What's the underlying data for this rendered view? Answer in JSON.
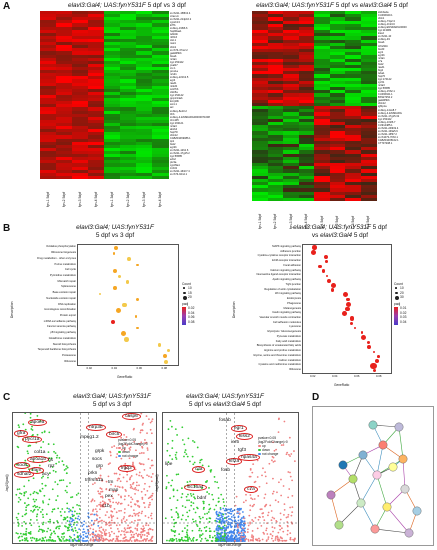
{
  "panels": {
    "A": {
      "letter": "A",
      "left": {
        "title_it": "elavl3:Gal4; UAS:fynY531F",
        "title_n": " 5 dpf  vs  3 dpf",
        "samples": [
          "fyn-1 5dpf",
          "fyn-2 5dpf",
          "fyn-3 5dpf",
          "fyn-4 5dpf",
          "fyn-1 3dpf",
          "fyn-2 3dpf",
          "fyn-3 3dpf",
          "fyn-4 3dpf"
        ],
        "genes": [
          "si:ch211-158l13.4",
          "crtam-b",
          "si:ch211-214p16.2",
          "cyp2n13",
          "kif7b",
          "si:dkey-196l6.6",
          "hsp90aa1",
          "tubb4b",
          "nfil3-6",
          "ctsl.1",
          "mat1",
          "cbln1",
          "si:ch73-47m2.2",
          "gadd45bb",
          "fosab",
          "nr4a1",
          "zgc:153442",
          "pvalb7",
          "crx.1",
          "prox1a",
          "nr1d1",
          "si:dkey-221h2.5",
          "egr4",
          "rasd1",
          "ntrk2b",
          "wnt7bb",
          "cldn5a",
          "zgc:154142",
          "ppp1r14ab",
          "kcnj10b",
          "sst1.1",
          "arc",
          "si:dkey-8e10.2",
          "thrb",
          "si:dkey-4.ENSDARG00000071008",
          "trim105",
          "zgc:163121",
          "nr4a3",
          "abcb4",
          "hsp70l",
          "cbln12",
          "CABZ01069086.1",
          "tpi1",
          "fosl2",
          "egr2b",
          "si:ch211-12h2.6",
          "si:ch211-17g15.2",
          "zgc:56585",
          "edn2",
          "ptx3a",
          "cyp39a1",
          "znhit3",
          "si:ch211-161h7.4",
          "si:ch73-94n4.1"
        ]
      },
      "right": {
        "title_it": "elavl3:Gal4; UAS:fynY531F",
        "title_n": " 5 dpf  vs  ",
        "title_it2": "elavl3:Gal4",
        "title_n2": " 5 dpf",
        "samples": [
          "fyn-1 5dpf",
          "fyn-2 5dpf",
          "fyn-3 5dpf",
          "fyn-4 5dpf",
          "C-1 5dpf",
          "C-2 5dpf",
          "C-3 5dpf",
          "C-4 5dpf"
        ],
        "genes": [
          "slc16a4a",
          "CU466940.1",
          "cbln1",
          "si:dkey-73p2.3",
          "si:dkey-1h24.6",
          "si:dkey.ENSDARG00000",
          "zgc:113084",
          "kiss2",
          "si:ch211-10",
          "si:dkey-49",
          "fosab",
          "tnfrsf11b",
          "foxd3",
          "egr1",
          "egr2b",
          "nr4a1",
          "c7a",
          "fosl2",
          "rasd1",
          "btg2",
          "tuba1",
          "hsp70",
          "zgc:174142",
          "cyr61",
          "nr4a3",
          "zgc:56585",
          "si:dkey-15h2.1",
          "CU466941.1",
          "BX927254.2",
          "gadd45bb",
          "cbln12",
          "igfbp1a",
          "si:dkey-14o18.7",
          "si:dkey-4.ENSDARG",
          "si:ch211-17g15.32",
          "zgc:153442",
          "si:dkey-102l6.7",
          "CU914485.1",
          "si:ch211-249l19.4",
          "si:ch211-139a5.9",
          "si:ch211-165l7.2",
          "si:ch1073-70h3.1",
          "CABZ01005102.1",
          "CT737208.1"
        ]
      }
    },
    "B": {
      "letter": "B",
      "left": {
        "title_it": "elavl3:Gal4; UAS:fynY531F",
        "title_n": "5 dpf  vs  3 dpf",
        "ylabel": "Description",
        "xlabel": "GeneRatio",
        "legend_count_title": "Count",
        "legend_count": [
          "10",
          "15",
          "20"
        ],
        "legend_padj_title": "padj",
        "legend_padj": [
          "0.02",
          "0.04",
          "0.06",
          "0.08"
        ],
        "terms": [
          "Oxidative phosphorylation",
          "Ribosome biogenesis",
          "Drug metabolism - other enzymes",
          "Purine metabolism",
          "Cell cycle",
          "Pyrimidine metabolism",
          "Mismatch repair",
          "Spliceosome",
          "Base excision repair",
          "Nucleotide excision repair",
          "DNA replication",
          "Homologous recombination",
          "Protein export",
          "mRNA surveillance pathway",
          "Fanconi anemia pathway",
          "p53 signaling pathway",
          "Glutathione metabolism",
          "Steroid biosynthesis",
          "Terpenoid backbone biosynthesis",
          "Proteasome",
          "Ribosome"
        ],
        "xticks": [
          "0.02",
          "0.04",
          "0.06",
          "0.08"
        ]
      },
      "right": {
        "title_it": "elavl3:Gal4; UAS:fynY531F",
        "title_n": " 5 dpf",
        "title_n2": "vs  ",
        "title_it2": "elavl3:Gal4",
        "title_n3": " 5 dpf",
        "ylabel": "Description",
        "xlabel": "GeneRatio",
        "legend_count_title": "Count",
        "legend_count": [
          "10",
          "20",
          "30"
        ],
        "legend_padj_title": "padj",
        "legend_padj": [
          "0.01",
          "0.02",
          "0.03",
          "0.04"
        ],
        "terms": [
          "MAPK signaling pathway",
          "Adherens junction",
          "Cytokine-cytokine receptor interaction",
          "ECM-receptor interaction",
          "Focal adhesion",
          "Calcium signaling pathway",
          "Neuroactive ligand-receptor interaction",
          "Apelin signaling pathway",
          "Tight junction",
          "Regulation of actin cytoskeleton",
          "Wnt signaling pathway",
          "Endocytosis",
          "Phagosome",
          "Melanogenesis",
          "Insulin signaling pathway",
          "Vascular smooth muscle contraction",
          "Cell adhesion molecules",
          "Lysosome",
          "Glycolysis / Gluconeogenesis",
          "Pyruvate metabolism",
          "Fatty acid metabolism",
          "Biosynthesis of unsaturated fatty acids",
          "Arginine and proline metabolism",
          "Glycine, serine and threonine metabolism",
          "Carbon metabolism",
          "Cysteine and methionine metabolism",
          "Ribosome"
        ],
        "xticks": [
          "0.02",
          "0.04",
          "0.06",
          "0.08"
        ]
      }
    },
    "C": {
      "letter": "C",
      "left": {
        "title_it": "elavl3:Gal4; UAS:fynY531F",
        "title_n": "5 dpf  vs  3 dpf",
        "ylabel": "-log10(padj)",
        "xlabel": "log2FoldChange",
        "legend_lines": [
          "pvalue<0.05",
          "|log2FoldChange|>0",
          "up",
          "down",
          "not change"
        ],
        "genes_up": [
          "casp6",
          "ntrp3b",
          "birc5",
          "mpeg1.2",
          "grpk",
          "socs",
          "grp",
          "prkn",
          "tnfrsf11a",
          "tm",
          "map",
          "pex"
        ],
        "genes_down": [
          "apoea",
          "gfra",
          "pycr1a",
          "col1a",
          "apoa1b",
          "sod1",
          "sdhaf2",
          "tfam",
          "acy"
        ],
        "genes_extra": [
          "irgq3",
          "hs",
          "rpz",
          "c1b"
        ]
      },
      "right": {
        "title_it": "elavl3:Gal4; UAS:fynY531F",
        "title_n": "5 dpf  vs  ",
        "title_it2": "elavl3:Gal4",
        "title_n2": " 5 dpf",
        "ylabel": "-log10(padj)",
        "xlabel": "log2FoldChange",
        "legend_lines": [
          "pvalue<0.05",
          "|log2FoldChange|>0",
          "up",
          "down",
          "not change"
        ],
        "genes_up": [
          "fosab",
          "egr1",
          "kiss2",
          "ier5",
          "tgf3",
          "npas4a",
          "klf2a",
          "fosb",
          "c7a"
        ],
        "genes_down": [
          "lipe",
          "cita",
          "slc16a4",
          "bdnf"
        ]
      }
    },
    "D": {
      "letter": "D"
    }
  },
  "colors": {
    "heat_red": "#ff0000",
    "heat_green": "#00c800",
    "volcano_up": "#f08080",
    "volcano_down": "#33cc33",
    "volcano_nc": "#4488ee",
    "dot_red": "#e8211c",
    "dot_blue": "#4a3cc8"
  }
}
